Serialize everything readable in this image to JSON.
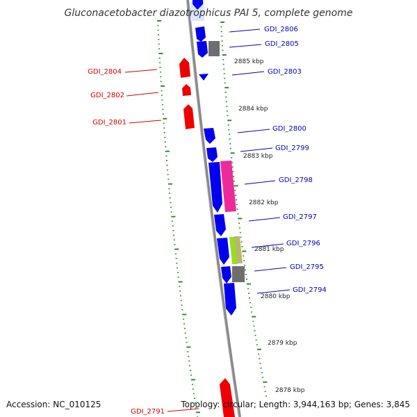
{
  "title": "Gluconacetobacter diazotrophicus PAI 5, complete genome",
  "footer": {
    "accession": "Accession: NC_010125",
    "topology": "Topology: circular; Length: 3,944,163 bp; Genes: 3,845"
  },
  "colors": {
    "forward_gene": "#0000ee",
    "reverse_gene": "#ee0000",
    "forward_label": "#0000bb",
    "reverse_label": "#cc0000",
    "backbone": "#8a8a8a",
    "tick": "#2e8b2e",
    "feature_gray": "#6e6e6e",
    "feature_pink": "#ee2a9a",
    "feature_green": "#99dd22",
    "feature_olive": "#b8b86a"
  },
  "scale_labels": [
    "2885 kbp",
    "2884 kbp",
    "2883 kbp",
    "2882 kbp",
    "2881 kbp",
    "2880 kbp",
    "2879 kbp",
    "2878 kbp"
  ],
  "forward_genes": [
    "GDI_2806",
    "GDI_2805",
    "GDI_2803",
    "GDI_2800",
    "GDI_2799",
    "GDI_2798",
    "GDI_2797",
    "GDI_2796",
    "GDI_2795",
    "GDI_2794"
  ],
  "reverse_genes": [
    "GDI_2804",
    "GDI_2802",
    "GDI_2801",
    "GDI_2791"
  ]
}
